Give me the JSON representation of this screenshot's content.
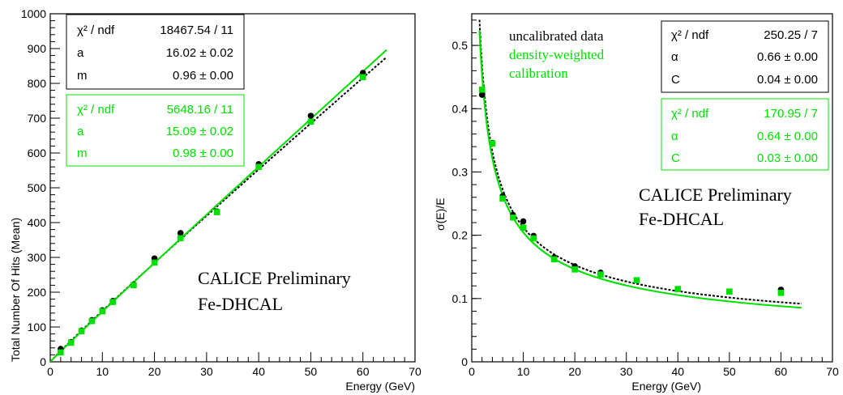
{
  "chart_data": [
    {
      "type": "scatter",
      "title": "",
      "xlabel": "Energy (GeV)",
      "ylabel": "Total Number Of Hits (Mean)",
      "xlim": [
        0,
        70
      ],
      "ylim": [
        0,
        1000
      ],
      "xticks": [
        "0",
        "10",
        "20",
        "30",
        "40",
        "50",
        "60",
        "70"
      ],
      "yticks": [
        "0",
        "100",
        "200",
        "300",
        "400",
        "500",
        "600",
        "700",
        "800",
        "900",
        "1000"
      ],
      "grid": false,
      "annotation_lines": [
        "CALICE Preliminary",
        "Fe-DHCAL"
      ],
      "series": [
        {
          "color": "#000000",
          "x": [
            2,
            4,
            6,
            8,
            10,
            12,
            16,
            20,
            25,
            32,
            40,
            50,
            60
          ],
          "y": [
            37,
            57,
            90,
            120,
            148,
            175,
            222,
            297,
            370,
            432,
            568,
            707,
            830
          ],
          "fit": {
            "a": 16.02,
            "m": 0.96,
            "xmax": 65
          }
        },
        {
          "color": "#00e000",
          "x": [
            2,
            4,
            6,
            8,
            10,
            12,
            16,
            20,
            25,
            32,
            40,
            50,
            60
          ],
          "y": [
            27,
            55,
            88,
            117,
            145,
            172,
            220,
            285,
            355,
            430,
            560,
            690,
            818
          ],
          "fit": {
            "a": 15.09,
            "m": 0.98,
            "xmax": 65
          }
        }
      ],
      "stat_boxes": [
        {
          "color": "#000000",
          "rows": [
            {
              "label": "χ² / ndf",
              "value": "18467.54 / 11"
            },
            {
              "label": "a",
              "value": "16.02 ±  0.02"
            },
            {
              "label": "m",
              "value": "0.96 ±  0.00"
            }
          ]
        },
        {
          "color": "#00e000",
          "rows": [
            {
              "label": "χ² / ndf",
              "value": "5648.16 / 11"
            },
            {
              "label": "a",
              "value": "15.09 ±  0.02"
            },
            {
              "label": "m",
              "value": "0.98 ±  0.00"
            }
          ]
        }
      ]
    },
    {
      "type": "scatter",
      "title": "",
      "xlabel": "Energy (GeV)",
      "ylabel": "σ(E)/E",
      "xlim": [
        0,
        70
      ],
      "ylim": [
        0,
        0.55
      ],
      "xticks": [
        "0",
        "10",
        "20",
        "30",
        "40",
        "50",
        "60",
        "70"
      ],
      "yticks": [
        "0",
        "0.1",
        "0.2",
        "0.3",
        "0.4",
        "0.5"
      ],
      "grid": false,
      "annotation_lines": [
        "CALICE Preliminary",
        "Fe-DHCAL"
      ],
      "legend": [
        {
          "label": "uncalibrated data",
          "color": "#000000"
        },
        {
          "label": "density-weighted",
          "color": "#00e000"
        },
        {
          "label": "calibration",
          "color": "#00e000"
        }
      ],
      "series": [
        {
          "color": "#000000",
          "x": [
            2,
            4,
            6,
            8,
            10,
            12,
            16,
            20,
            25,
            60
          ],
          "y": [
            0.422,
            0.346,
            0.262,
            0.232,
            0.222,
            0.199,
            0.165,
            0.151,
            0.141,
            0.114
          ],
          "fit": {
            "alpha": 0.66,
            "C": 0.04,
            "xmin": 1.5,
            "xmax": 64
          }
        },
        {
          "color": "#00e000",
          "x": [
            2,
            4,
            6,
            8,
            10,
            12,
            16,
            20,
            25,
            32,
            40,
            50,
            60
          ],
          "y": [
            0.43,
            0.345,
            0.258,
            0.228,
            0.212,
            0.195,
            0.162,
            0.146,
            0.138,
            0.129,
            0.115,
            0.111,
            0.109
          ],
          "fit": {
            "alpha": 0.64,
            "C": 0.03,
            "xmin": 1.5,
            "xmax": 64
          }
        }
      ],
      "stat_boxes": [
        {
          "color": "#000000",
          "rows": [
            {
              "label": "χ² / ndf",
              "value": "250.25 / 7"
            },
            {
              "label": "α",
              "value": "0.66 ±  0.00"
            },
            {
              "label": "C",
              "value": "0.04 ±  0.00"
            }
          ]
        },
        {
          "color": "#00e000",
          "rows": [
            {
              "label": "χ² / ndf",
              "value": "170.95 / 7"
            },
            {
              "label": "α",
              "value": "0.64 ±  0.00"
            },
            {
              "label": "C",
              "value": "0.03 ±  0.00"
            }
          ]
        }
      ]
    }
  ]
}
